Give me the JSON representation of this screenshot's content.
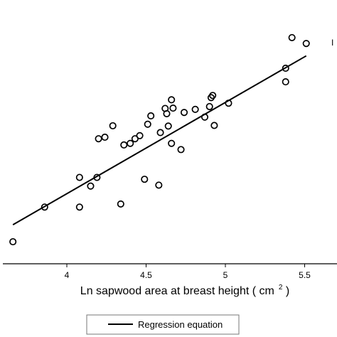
{
  "chart_data": {
    "type": "scatter",
    "title": "",
    "xlabel": "Ln sapwood area at breast height",
    "xlabel_unit_base": "cm",
    "xlabel_unit_exp": "2",
    "ylabel": "",
    "xlim": [
      3.65,
      5.65
    ],
    "x_ticks": [
      "4",
      "4.5",
      "5",
      "5.5"
    ],
    "x_tick_values": [
      4,
      4.5,
      5,
      5.5
    ],
    "grid": false,
    "legend": {
      "placement": "bottom-center",
      "entries": [
        "Regression equation"
      ]
    },
    "edge_glyph": "I",
    "points": [
      {
        "x": 3.66,
        "y": 1.0
      },
      {
        "x": 3.86,
        "y": 2.12
      },
      {
        "x": 4.08,
        "y": 2.12
      },
      {
        "x": 4.08,
        "y": 3.08
      },
      {
        "x": 4.15,
        "y": 2.8
      },
      {
        "x": 4.19,
        "y": 3.08
      },
      {
        "x": 4.2,
        "y": 4.33
      },
      {
        "x": 4.24,
        "y": 4.38
      },
      {
        "x": 4.29,
        "y": 4.75
      },
      {
        "x": 4.34,
        "y": 2.22
      },
      {
        "x": 4.36,
        "y": 4.13
      },
      {
        "x": 4.4,
        "y": 4.18
      },
      {
        "x": 4.43,
        "y": 4.33
      },
      {
        "x": 4.46,
        "y": 4.43
      },
      {
        "x": 4.49,
        "y": 3.02
      },
      {
        "x": 4.51,
        "y": 4.8
      },
      {
        "x": 4.53,
        "y": 5.07
      },
      {
        "x": 4.58,
        "y": 2.83
      },
      {
        "x": 4.59,
        "y": 4.53
      },
      {
        "x": 4.62,
        "y": 5.31
      },
      {
        "x": 4.63,
        "y": 5.14
      },
      {
        "x": 4.64,
        "y": 4.74
      },
      {
        "x": 4.66,
        "y": 4.18
      },
      {
        "x": 4.66,
        "y": 5.59
      },
      {
        "x": 4.67,
        "y": 5.32
      },
      {
        "x": 4.72,
        "y": 3.98
      },
      {
        "x": 4.74,
        "y": 5.18
      },
      {
        "x": 4.81,
        "y": 5.28
      },
      {
        "x": 4.87,
        "y": 5.03
      },
      {
        "x": 4.9,
        "y": 5.37
      },
      {
        "x": 4.91,
        "y": 5.66
      },
      {
        "x": 4.92,
        "y": 5.73
      },
      {
        "x": 4.93,
        "y": 4.76
      },
      {
        "x": 5.02,
        "y": 5.48
      },
      {
        "x": 5.38,
        "y": 6.17
      },
      {
        "x": 5.38,
        "y": 6.61
      },
      {
        "x": 5.42,
        "y": 7.6
      },
      {
        "x": 5.51,
        "y": 7.41
      }
    ],
    "regression_line": {
      "name": "Regression equation",
      "x": [
        3.66,
        5.51
      ],
      "y": [
        1.55,
        7.01
      ]
    }
  }
}
